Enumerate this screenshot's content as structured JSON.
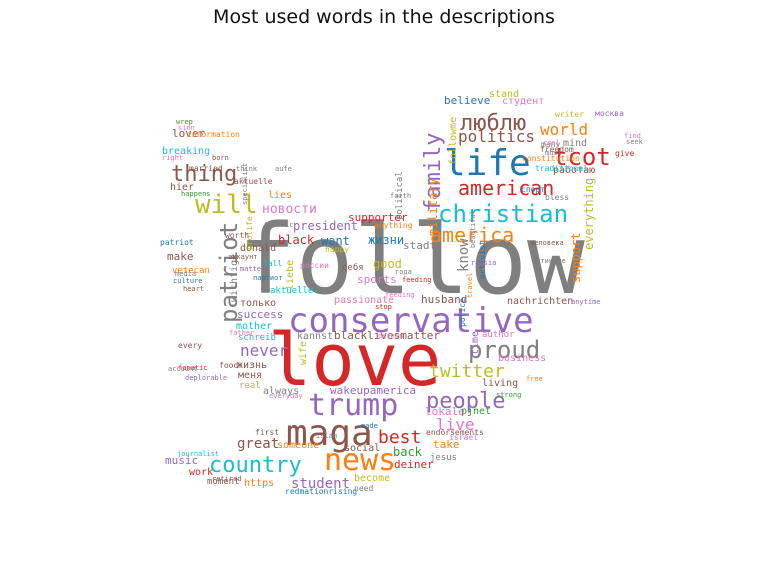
{
  "title": "Most used words in the descriptions",
  "palette": {
    "blue": "#1f77b4",
    "orange": "#ff7f0e",
    "green": "#2ca02c",
    "red": "#d62728",
    "purple": "#9467bd",
    "brown": "#8c564b",
    "pink": "#e377c2",
    "gray": "#7f7f7f",
    "olive": "#bcbd22",
    "cyan": "#17becf"
  },
  "words": [
    {
      "text": "follow",
      "color": "gray"
    },
    {
      "text": "love",
      "color": "red"
    },
    {
      "text": "conservative",
      "color": "purple"
    },
    {
      "text": "maga",
      "color": "brown"
    },
    {
      "text": "trump",
      "color": "purple"
    },
    {
      "text": "news",
      "color": "orange"
    },
    {
      "text": "life",
      "color": "blue"
    },
    {
      "text": "christian",
      "color": "cyan"
    },
    {
      "text": "proud",
      "color": "gray"
    },
    {
      "text": "country",
      "color": "cyan"
    },
    {
      "text": "america",
      "color": "orange"
    },
    {
      "text": "american",
      "color": "red"
    },
    {
      "text": "люблю",
      "color": "brown"
    },
    {
      "text": "tcot",
      "color": "red"
    },
    {
      "text": "people",
      "color": "purple"
    },
    {
      "text": "will",
      "color": "olive"
    },
    {
      "text": "thing",
      "color": "brown"
    },
    {
      "text": "twitter",
      "color": "olive"
    },
    {
      "text": "patriot",
      "color": "gray"
    },
    {
      "text": "family",
      "color": "purple"
    },
    {
      "text": "best",
      "color": "red"
    },
    {
      "text": "never",
      "color": "purple"
    },
    {
      "text": "politics",
      "color": "brown"
    },
    {
      "text": "world",
      "color": "orange"
    },
    {
      "text": "student",
      "color": "purple"
    },
    {
      "text": "live",
      "color": "pink"
    },
    {
      "text": "great",
      "color": "brown"
    },
    {
      "text": "новости",
      "color": "pink"
    },
    {
      "text": "good",
      "color": "olive"
    },
    {
      "text": "president",
      "color": "purple"
    },
    {
      "text": "black",
      "color": "red"
    },
    {
      "text": "want",
      "color": "blue"
    },
    {
      "text": "жизни",
      "color": "blue"
    },
    {
      "text": "know",
      "color": "gray"
    },
    {
      "text": "support",
      "color": "orange"
    },
    {
      "text": "everything",
      "color": "olive"
    },
    {
      "text": "military",
      "color": "orange"
    },
    {
      "text": "followme",
      "color": "olive"
    },
    {
      "text": "believe",
      "color": "blue"
    },
    {
      "text": "студент",
      "color": "pink"
    },
    {
      "text": "stand",
      "color": "olive"
    },
    {
      "text": "mind",
      "color": "gray"
    },
    {
      "text": "работаю",
      "color": "brown"
    },
    {
      "text": "freedom",
      "color": "brown"
    },
    {
      "text": "constitution",
      "color": "orange"
    },
    {
      "text": "lover",
      "color": "brown"
    },
    {
      "text": "breaking",
      "color": "cyan"
    },
    {
      "text": "hier",
      "color": "brown"
    },
    {
      "text": "make",
      "color": "brown"
    },
    {
      "text": "donald",
      "color": "brown"
    },
    {
      "text": "supporter",
      "color": "red"
    },
    {
      "text": "stadt",
      "color": "gray"
    },
    {
      "text": "sports",
      "color": "pink"
    },
    {
      "text": "lies",
      "color": "orange"
    },
    {
      "text": "patriot",
      "color": "blue"
    },
    {
      "text": "vetecan",
      "color": "orange"
    },
    {
      "text": "success",
      "color": "purple"
    },
    {
      "text": "mother",
      "color": "cyan"
    },
    {
      "text": "только",
      "color": "brown"
    },
    {
      "text": "wichtige",
      "color": "gray"
    },
    {
      "text": "liebe",
      "color": "olive"
    },
    {
      "text": "schreib",
      "color": "cyan"
    },
    {
      "text": "жизнь",
      "color": "brown"
    },
    {
      "text": "меня",
      "color": "brown"
    },
    {
      "text": "wife",
      "color": "olive"
    },
    {
      "text": "real",
      "color": "olive"
    },
    {
      "text": "always",
      "color": "gray"
    },
    {
      "text": "music",
      "color": "purple"
    },
    {
      "text": "work",
      "color": "red"
    },
    {
      "text": "moment",
      "color": "brown"
    },
    {
      "text": "https",
      "color": "orange"
    },
    {
      "text": "become",
      "color": "olive"
    },
    {
      "text": "need",
      "color": "gray"
    },
    {
      "text": "social",
      "color": "brown"
    },
    {
      "text": "back",
      "color": "green"
    },
    {
      "text": "deiner",
      "color": "red"
    },
    {
      "text": "take",
      "color": "orange"
    },
    {
      "text": "jesus",
      "color": "gray"
    },
    {
      "text": "lokale",
      "color": "pink"
    },
    {
      "text": "pjnet",
      "color": "green"
    },
    {
      "text": "living",
      "color": "brown"
    },
    {
      "text": "business",
      "color": "pink"
    },
    {
      "text": "wakeupamerica",
      "color": "purple"
    },
    {
      "text": "blacklivesmatter",
      "color": "brown"
    },
    {
      "text": "kannst",
      "color": "gray"
    },
    {
      "text": "husband",
      "color": "brown"
    },
    {
      "text": "nachrichten",
      "color": "brown"
    },
    {
      "text": "time",
      "color": "purple"
    },
    {
      "text": "passionate",
      "color": "pink"
    },
    {
      "text": "aktuelle",
      "color": "cyan"
    },
    {
      "text": "себя",
      "color": "brown"
    },
    {
      "text": "россии",
      "color": "pink"
    },
    {
      "text": "redmationrising",
      "color": "blue"
    },
    {
      "text": "retired",
      "color": "brown"
    },
    {
      "text": "someone",
      "color": "orange"
    },
    {
      "text": "first",
      "color": "brown"
    },
    {
      "text": "everyday",
      "color": "pink"
    },
    {
      "text": "islam",
      "color": "gray"
    },
    {
      "text": "israel",
      "color": "pink"
    },
    {
      "text": "endorsements",
      "color": "brown"
    },
    {
      "text": "made",
      "color": "blue"
    },
    {
      "text": "journalist",
      "color": "cyan"
    },
    {
      "text": "strong",
      "color": "green"
    },
    {
      "text": "free",
      "color": "orange"
    },
    {
      "text": "author",
      "color": "pink"
    },
    {
      "text": "political",
      "color": "gray"
    },
    {
      "text": "anything",
      "color": "orange"
    },
    {
      "text": "happy",
      "color": "olive"
    },
    {
      "text": "prolife",
      "color": "olive"
    },
    {
      "text": "fall",
      "color": "cyan"
    },
    {
      "text": "worth",
      "color": "brown"
    },
    {
      "text": "traffic",
      "color": "gray"
    },
    {
      "text": "married",
      "color": "brown"
    },
    {
      "text": "think",
      "color": "gray"
    },
    {
      "text": "born",
      "color": "brown"
    },
    {
      "text": "information",
      "color": "orange"
    },
    {
      "text": "every",
      "color": "brown"
    },
    {
      "text": "media",
      "color": "gray"
    },
    {
      "text": "heart",
      "color": "brown"
    },
    {
      "text": "father",
      "color": "pink"
    },
    {
      "text": "food",
      "color": "brown"
    },
    {
      "text": "fanatic",
      "color": "red"
    },
    {
      "text": "deplorable",
      "color": "purple"
    },
    {
      "text": "culture",
      "color": "blue"
    },
    {
      "text": "account",
      "color": "gray"
    },
    {
      "text": "bless",
      "color": "gray"
    },
    {
      "text": "must",
      "color": "gray"
    },
    {
      "text": "москва",
      "color": "purple"
    },
    {
      "text": "writer",
      "color": "olive"
    },
    {
      "text": "many",
      "color": "gray"
    },
    {
      "text": "спорт",
      "color": "blue"
    },
    {
      "text": "traditional",
      "color": "cyan"
    },
    {
      "text": "aktuelle",
      "color": "brown"
    },
    {
      "text": "cool",
      "color": "pink"
    },
    {
      "text": "give",
      "color": "red"
    },
    {
      "text": "find",
      "color": "pink"
    },
    {
      "text": "seek",
      "color": "gray"
    },
    {
      "text": "police",
      "color": "blue"
    },
    {
      "text": "travel",
      "color": "orange"
    },
    {
      "text": "activist",
      "color": "blue"
    },
    {
      "text": "beautiful",
      "color": "gray"
    },
    {
      "text": "человека",
      "color": "brown"
    },
    {
      "text": "истинные",
      "color": "gray"
    },
    {
      "text": "faith",
      "color": "gray"
    },
    {
      "text": "aufe",
      "color": "gray"
    },
    {
      "text": "specialist",
      "color": "gray"
    },
    {
      "text": "аккаунт",
      "color": "brown"
    },
    {
      "text": "партиот",
      "color": "blue"
    },
    {
      "text": "sinn",
      "color": "pink"
    },
    {
      "text": "wrep",
      "color": "green"
    },
    {
      "text": "right",
      "color": "pink"
    },
    {
      "text": "happens",
      "color": "green"
    },
    {
      "text": "matter",
      "color": "purple"
    },
    {
      "text": "feeding",
      "color": "pink"
    },
    {
      "text": "deinen",
      "color": "pink"
    },
    {
      "text": "anytime",
      "color": "purple"
    },
    {
      "text": "russia",
      "color": "purple"
    },
    {
      "text": "stop",
      "color": "red"
    },
    {
      "text": "feeding",
      "color": "red"
    },
    {
      "text": "года",
      "color": "gray"
    },
    {
      "text": "bear",
      "color": "gray"
    },
    {
      "text": "сбор",
      "color": "gray"
    }
  ]
}
